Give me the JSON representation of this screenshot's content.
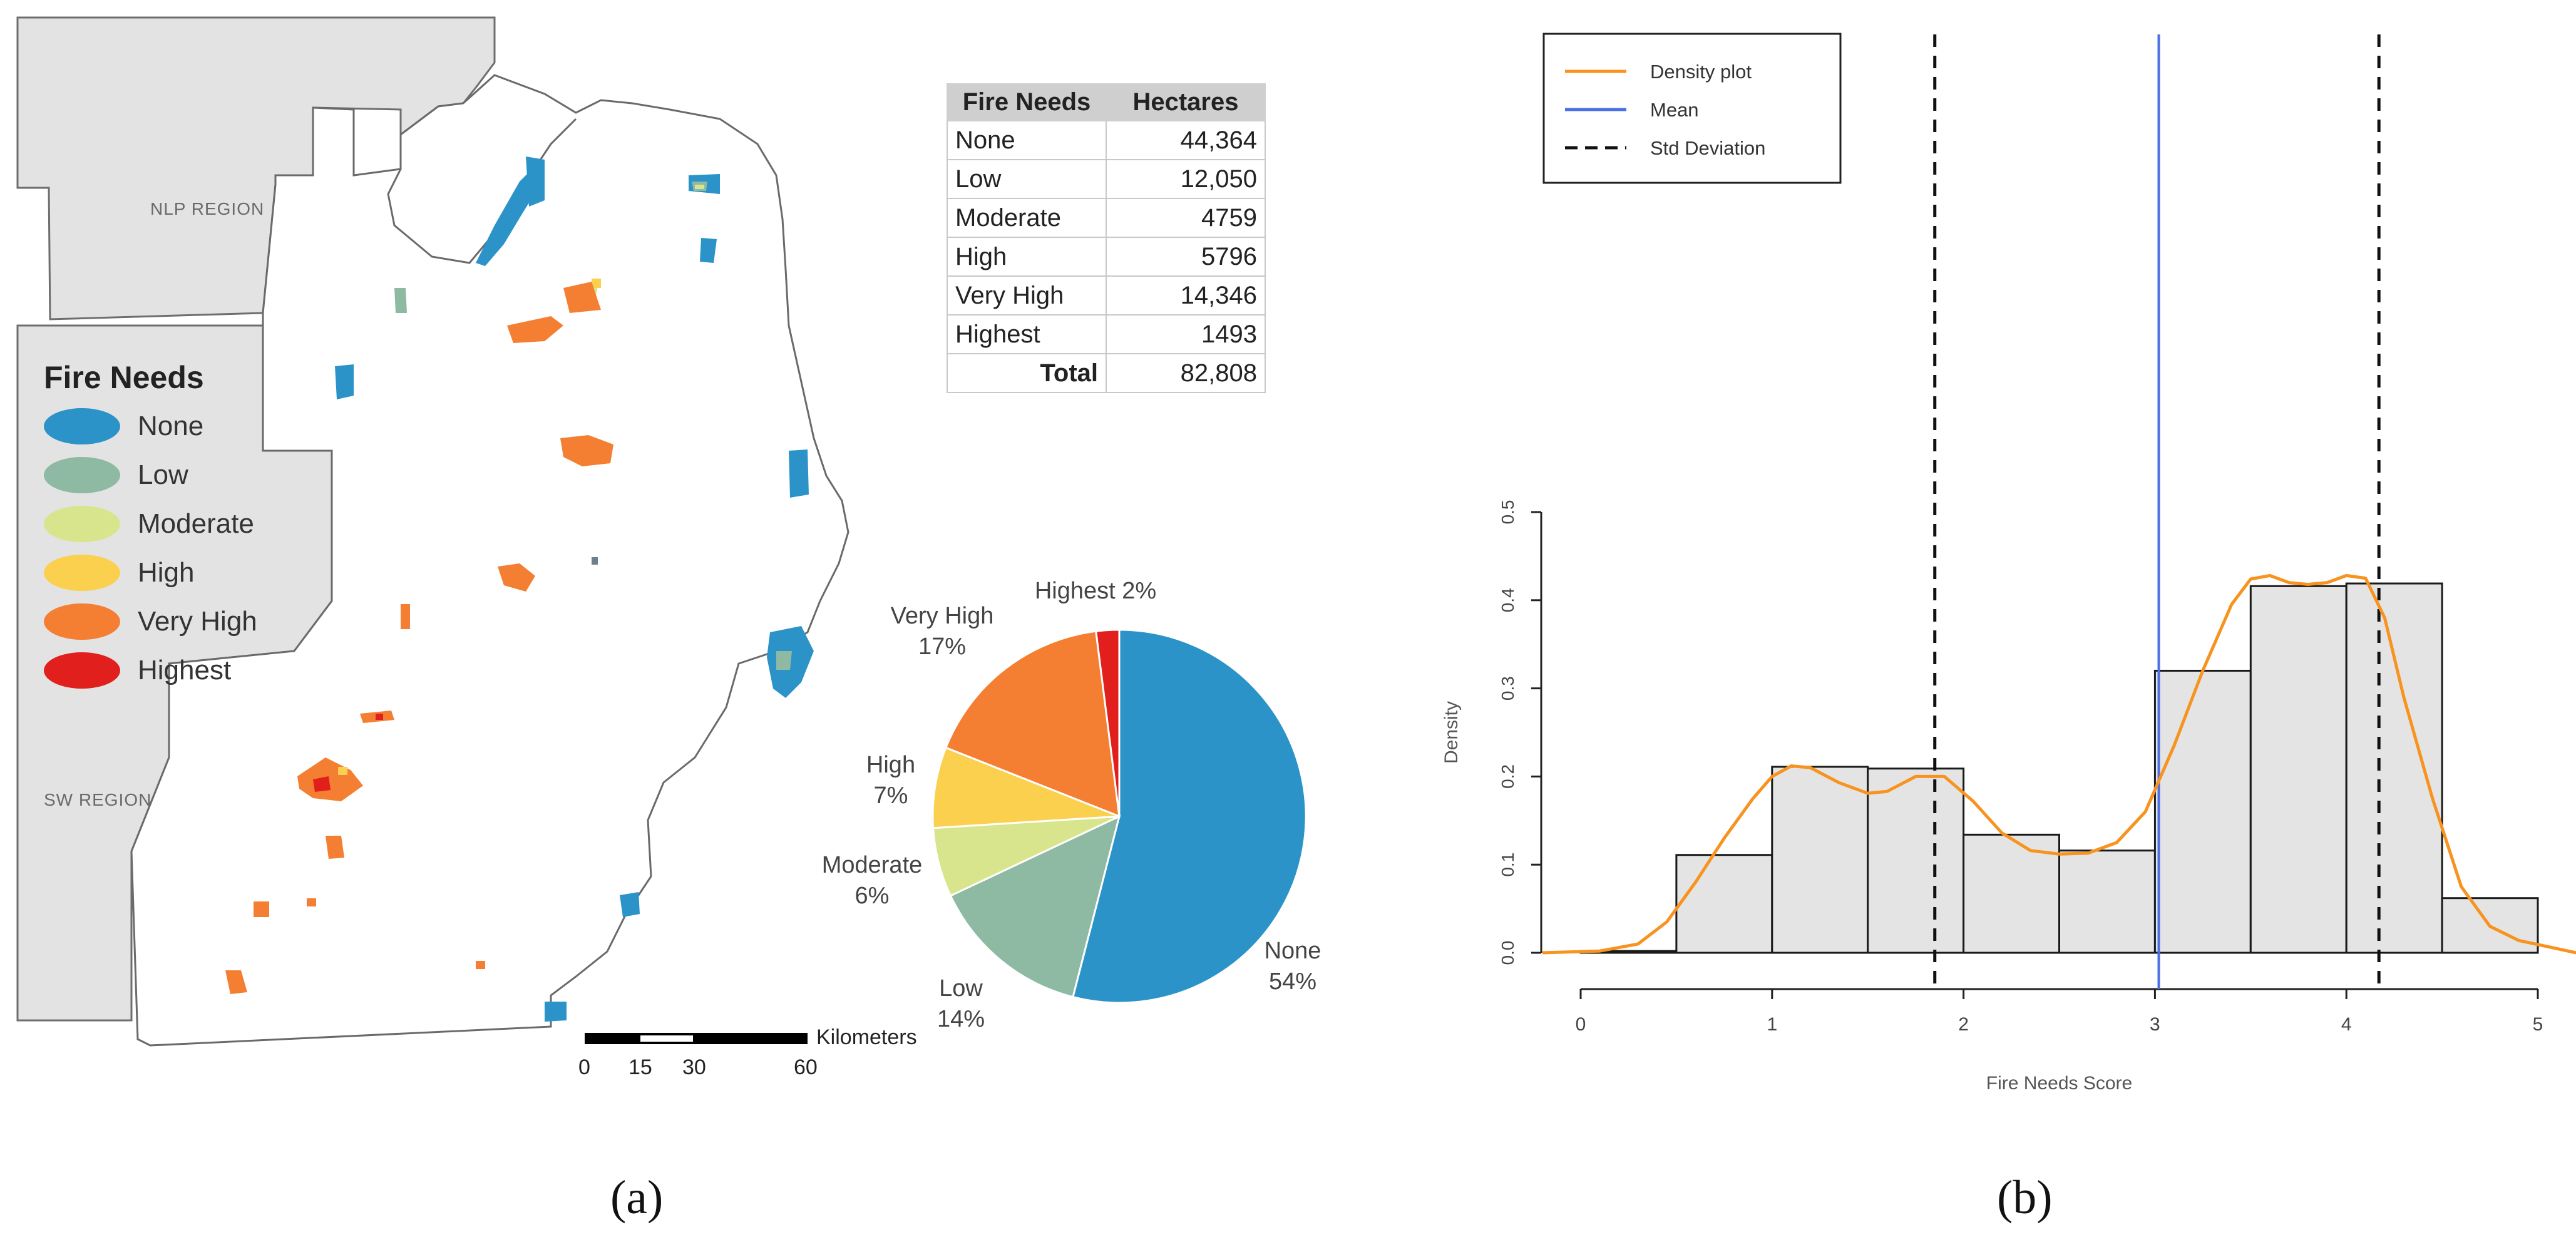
{
  "map": {
    "regions": [
      "NLP REGION",
      "SW REGION"
    ],
    "legend": {
      "title": "Fire Needs",
      "items": [
        {
          "label": "None",
          "color": "#2b93c8"
        },
        {
          "label": "Low",
          "color": "#8eb9a3"
        },
        {
          "label": "Moderate",
          "color": "#d9e58c"
        },
        {
          "label": "High",
          "color": "#fbd04f"
        },
        {
          "label": "Very High",
          "color": "#f47e31"
        },
        {
          "label": "Highest",
          "color": "#e11f1c"
        }
      ]
    },
    "scale_bar": {
      "ticks": [
        "0",
        "15",
        "30",
        "60"
      ],
      "unit": "Kilometers"
    }
  },
  "table": {
    "headers": [
      "Fire Needs",
      "Hectares"
    ],
    "rows": [
      {
        "name": "None",
        "value": "44,364"
      },
      {
        "name": "Low",
        "value": "12,050"
      },
      {
        "name": "Moderate",
        "value": "4759"
      },
      {
        "name": "High",
        "value": "5796"
      },
      {
        "name": "Very High",
        "value": "14,346"
      },
      {
        "name": "Highest",
        "value": "1493"
      }
    ],
    "total_label": "Total",
    "total_value": "82,808"
  },
  "panel_labels": [
    "(a)",
    "(b)"
  ],
  "chart_data": [
    {
      "type": "pie",
      "title": "",
      "slices": [
        {
          "name": "None",
          "percent": 54,
          "label": "None\n54%",
          "color": "#2b93c8"
        },
        {
          "name": "Low",
          "percent": 14,
          "label": "Low\n14%",
          "color": "#8eb9a3"
        },
        {
          "name": "Moderate",
          "percent": 6,
          "label": "Moderate\n6%",
          "color": "#d9e58c"
        },
        {
          "name": "High",
          "percent": 7,
          "label": "High\n7%",
          "color": "#fbd04f"
        },
        {
          "name": "Very High",
          "percent": 17,
          "label": "Very High\n17%",
          "color": "#f47e31"
        },
        {
          "name": "Highest",
          "percent": 2,
          "label": "Highest 2%",
          "color": "#e11f1c"
        }
      ]
    },
    {
      "type": "bar",
      "title": "",
      "xlabel": "Fire Needs Score",
      "ylabel": "Density",
      "xlim": [
        0,
        5
      ],
      "ylim": [
        0,
        0.5
      ],
      "xticks": [
        "0",
        "1",
        "2",
        "3",
        "4",
        "5"
      ],
      "yticks": [
        "0.0",
        "0.1",
        "0.2",
        "0.3",
        "0.4",
        "0.5"
      ],
      "bins": [
        {
          "x0": 0.0,
          "x1": 0.5,
          "density": 0.002
        },
        {
          "x0": 0.5,
          "x1": 1.0,
          "density": 0.111
        },
        {
          "x0": 1.0,
          "x1": 1.5,
          "density": 0.211
        },
        {
          "x0": 1.5,
          "x1": 2.0,
          "density": 0.209
        },
        {
          "x0": 2.0,
          "x1": 2.5,
          "density": 0.134
        },
        {
          "x0": 2.5,
          "x1": 3.0,
          "density": 0.116
        },
        {
          "x0": 3.0,
          "x1": 3.5,
          "density": 0.32
        },
        {
          "x0": 3.5,
          "x1": 4.0,
          "density": 0.416
        },
        {
          "x0": 4.0,
          "x1": 4.5,
          "density": 0.419
        },
        {
          "x0": 4.5,
          "x1": 5.0,
          "density": 0.062
        }
      ],
      "density_curve": {
        "x": [
          -0.2,
          0.1,
          0.3,
          0.45,
          0.6,
          0.75,
          0.9,
          1.0,
          1.1,
          1.2,
          1.35,
          1.5,
          1.6,
          1.75,
          1.9,
          2.05,
          2.2,
          2.35,
          2.5,
          2.65,
          2.8,
          2.95,
          3.1,
          3.25,
          3.4,
          3.5,
          3.6,
          3.7,
          3.8,
          3.9,
          4.0,
          4.1,
          4.2,
          4.3,
          4.45,
          4.6,
          4.75,
          4.9,
          5.05,
          5.2
        ],
        "y": [
          0.0,
          0.002,
          0.01,
          0.035,
          0.08,
          0.13,
          0.175,
          0.2,
          0.212,
          0.21,
          0.193,
          0.181,
          0.183,
          0.2,
          0.2,
          0.172,
          0.136,
          0.116,
          0.112,
          0.113,
          0.125,
          0.16,
          0.235,
          0.32,
          0.395,
          0.424,
          0.428,
          0.42,
          0.418,
          0.42,
          0.428,
          0.425,
          0.38,
          0.29,
          0.175,
          0.075,
          0.03,
          0.014,
          0.007,
          0.0
        ]
      },
      "mean": 3.02,
      "std_lines": [
        1.85,
        4.17
      ],
      "legend": [
        {
          "label": "Density plot",
          "color": "#f7931e",
          "style": "solid"
        },
        {
          "label": "Mean",
          "color": "#4a6fe3",
          "style": "solid"
        },
        {
          "label": "Std Deviation",
          "color": "#111111",
          "style": "dashed"
        }
      ]
    }
  ]
}
